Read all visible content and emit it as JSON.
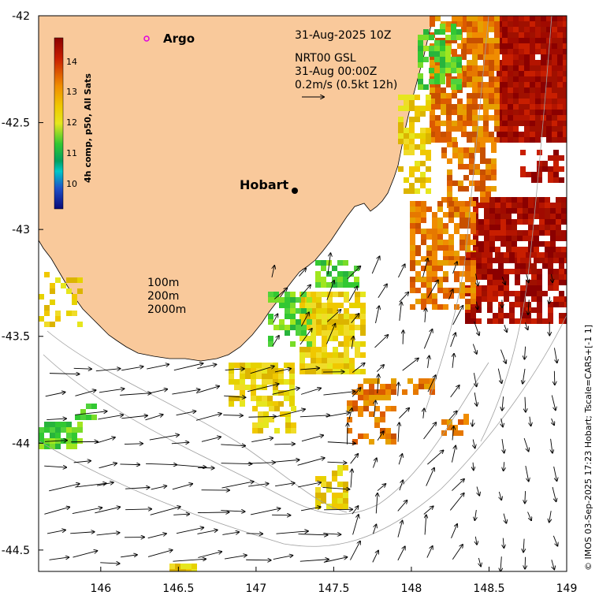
{
  "timestamp": "31-Aug-2025 10Z",
  "current_info": {
    "line1": "NRT00 GSL",
    "line2": "31-Aug 00:00Z",
    "line3": "0.2m/s (0.5kt 12h)"
  },
  "argo_label": "Argo",
  "city": {
    "name": "Hobart",
    "lon": 147.26,
    "lat": -42.82
  },
  "depth_legend": [
    "100m",
    "200m",
    "2000m"
  ],
  "colorbar": {
    "title": "4h comp, p50, All Sats",
    "ticks": [
      "14",
      "13",
      "12",
      "11",
      "10"
    ],
    "colors": {
      "dark_red": "#8b0000",
      "red": "#c81e00",
      "orange": "#f08c00",
      "gold": "#f0c800",
      "yellow": "#e6e61e",
      "green": "#32c832",
      "cyan": "#00c8c8",
      "blue": "#1e50c8",
      "navy": "#0a0a78"
    }
  },
  "credit": "© IMOS 03-Sep-2025 17:23 Hobart; Tscale=CARS+[-1 1]",
  "axes": {
    "x_ticks": [
      "146",
      "146.5",
      "147",
      "147.5",
      "148",
      "148.5",
      "149"
    ],
    "y_ticks": [
      "-42",
      "-42.5",
      "-43",
      "-43.5",
      "-44",
      "-44.5"
    ],
    "lon_range": [
      145.6,
      149.0
    ],
    "lat_range": [
      -44.6,
      -42.0
    ]
  },
  "colors": {
    "land": "#f9c99b",
    "arrow": "#000000",
    "isobath": "#a0a0a0"
  }
}
